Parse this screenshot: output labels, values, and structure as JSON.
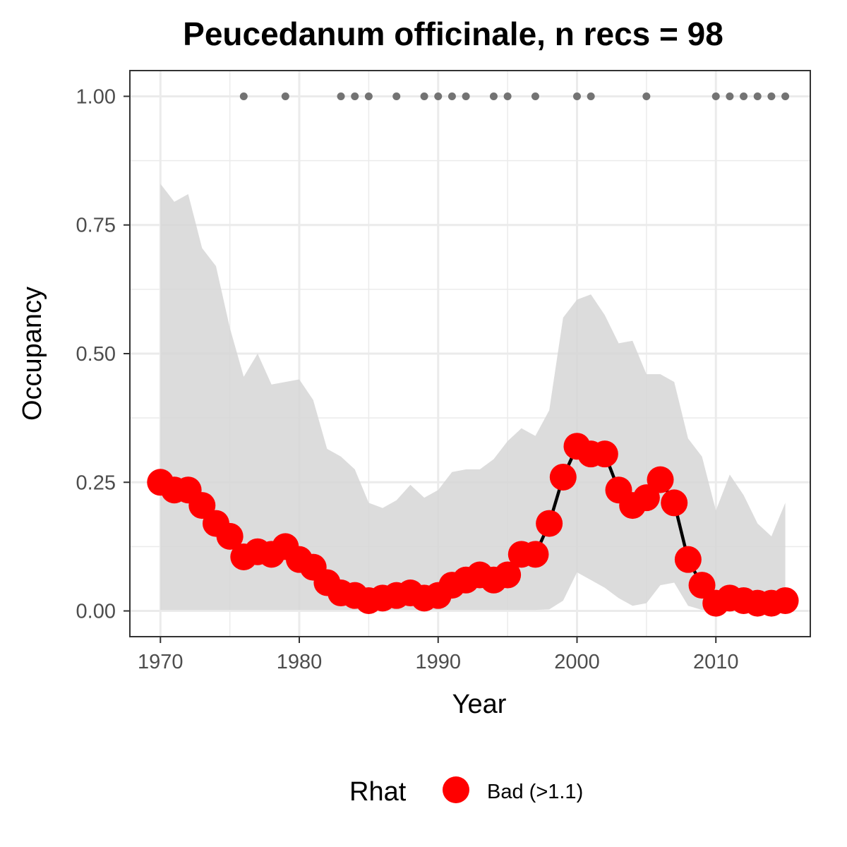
{
  "chart_data": {
    "type": "line",
    "title": "Peucedanum officinale, n recs = 98",
    "xlabel": "Year",
    "ylabel": "Occupancy",
    "xlim": [
      1967.8,
      2016.8
    ],
    "ylim": [
      -0.05,
      1.05
    ],
    "x_ticks": [
      1970,
      1980,
      1990,
      2000,
      2010
    ],
    "x_tick_labels": [
      "1970",
      "1980",
      "1990",
      "2000",
      "2010"
    ],
    "y_ticks": [
      0,
      0.25,
      0.5,
      0.75,
      1
    ],
    "y_tick_labels": [
      "0.00",
      "0.25",
      "0.50",
      "0.75",
      "1.00"
    ],
    "grid": true,
    "legend_placement": "bottom",
    "legend": {
      "title": "Rhat",
      "entries": [
        {
          "label": "Bad (>1.1)",
          "color": "#ff0000"
        }
      ]
    },
    "colors": {
      "points": "#ff0000",
      "line": "#000000",
      "ribbon": "#d6d6d6",
      "records": "#737373",
      "grid": "#ebebeb",
      "panel_border": "#333333"
    },
    "series": [
      {
        "x": [
          1970,
          1971,
          1972,
          1973,
          1974,
          1975,
          1976,
          1977,
          1978,
          1979,
          1980,
          1981,
          1982,
          1983,
          1984,
          1985,
          1986,
          1987,
          1988,
          1989,
          1990,
          1991,
          1992,
          1993,
          1994,
          1995,
          1996,
          1997,
          1998,
          1999,
          2000,
          2001,
          2002,
          2003,
          2004,
          2005,
          2006,
          2007,
          2008,
          2009,
          2010,
          2011,
          2012,
          2013,
          2014,
          2015
        ],
        "y": [
          0.25,
          0.235,
          0.235,
          0.205,
          0.17,
          0.145,
          0.105,
          0.115,
          0.11,
          0.125,
          0.1,
          0.085,
          0.055,
          0.035,
          0.03,
          0.02,
          0.025,
          0.03,
          0.035,
          0.025,
          0.03,
          0.05,
          0.06,
          0.07,
          0.06,
          0.07,
          0.11,
          0.11,
          0.17,
          0.26,
          0.32,
          0.305,
          0.305,
          0.235,
          0.205,
          0.22,
          0.255,
          0.21,
          0.1,
          0.05,
          0.015,
          0.025,
          0.02,
          0.015,
          0.015,
          0.02
        ],
        "lower": [
          0.002,
          0.002,
          0.002,
          0.002,
          0.002,
          0.002,
          0.002,
          0.002,
          0.002,
          0.002,
          0.002,
          0.002,
          0.002,
          0.002,
          0.002,
          0.002,
          0.002,
          0.002,
          0.002,
          0.002,
          0.002,
          0.002,
          0.002,
          0.002,
          0.002,
          0.002,
          0.002,
          0.002,
          0.003,
          0.02,
          0.075,
          0.06,
          0.045,
          0.025,
          0.01,
          0.015,
          0.05,
          0.055,
          0.01,
          0.002,
          0.002,
          0.002,
          0.002,
          0.002,
          0.002,
          0.002
        ],
        "upper": [
          0.83,
          0.795,
          0.81,
          0.705,
          0.67,
          0.55,
          0.455,
          0.5,
          0.44,
          0.445,
          0.45,
          0.41,
          0.315,
          0.3,
          0.275,
          0.21,
          0.2,
          0.215,
          0.245,
          0.22,
          0.235,
          0.27,
          0.275,
          0.275,
          0.295,
          0.33,
          0.355,
          0.34,
          0.39,
          0.57,
          0.605,
          0.615,
          0.575,
          0.52,
          0.525,
          0.46,
          0.46,
          0.445,
          0.335,
          0.3,
          0.195,
          0.265,
          0.225,
          0.17,
          0.145,
          0.21
        ]
      }
    ],
    "record_years": [
      1976,
      1979,
      1983,
      1984,
      1985,
      1987,
      1989,
      1990,
      1991,
      1992,
      1994,
      1995,
      1997,
      2000,
      2001,
      2005,
      2010,
      2011,
      2012,
      2013,
      2014,
      2015
    ],
    "record_value": 1.0
  }
}
